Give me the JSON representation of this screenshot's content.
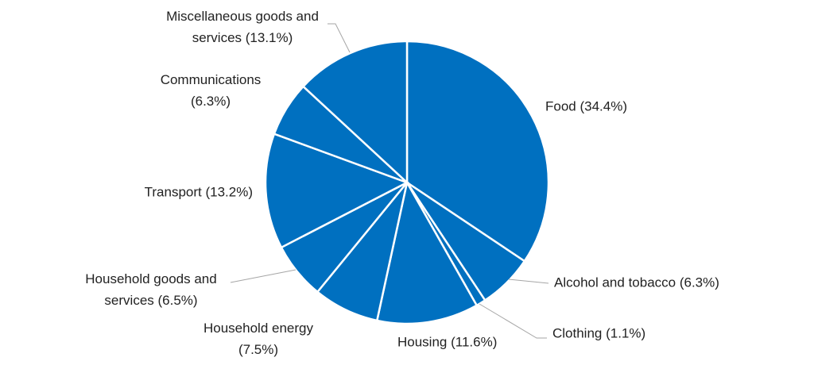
{
  "chart_data": {
    "type": "pie",
    "labels": [
      "Food (34.4%)",
      "Alcohol and tobacco (6.3%)",
      "Clothing (1.1%)",
      "Housing (11.6%)",
      "Household energy (7.5%)",
      "Household goods and services (6.5%)",
      "Transport (13.2%)",
      "Communications (6.3%)",
      "Miscellaneous goods and services (13.1%)"
    ],
    "values": [
      34.4,
      6.3,
      1.1,
      11.6,
      7.5,
      6.5,
      13.2,
      6.3,
      13.1
    ],
    "color": "#0070c0"
  }
}
